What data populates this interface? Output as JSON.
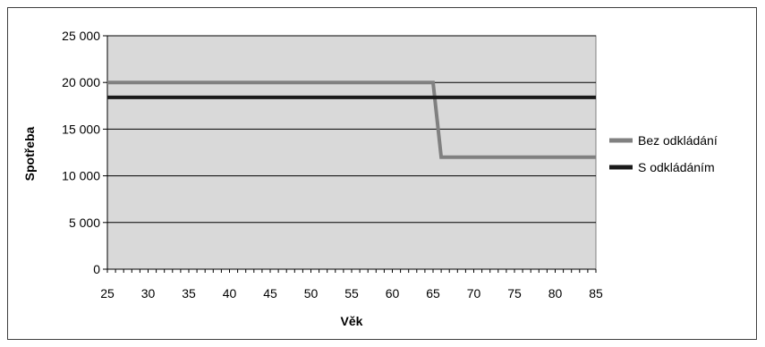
{
  "chart_data": {
    "type": "line",
    "xlabel": "Věk",
    "ylabel": "Spotřeba",
    "xlim": [
      25,
      85
    ],
    "ylim": [
      0,
      25000
    ],
    "x_ticks": [
      25,
      30,
      35,
      40,
      45,
      50,
      55,
      60,
      65,
      70,
      75,
      80,
      85
    ],
    "x_tick_labels": [
      "25",
      "30",
      "35",
      "40",
      "45",
      "50",
      "55",
      "60",
      "65",
      "70",
      "75",
      "80",
      "85"
    ],
    "y_ticks": [
      0,
      5000,
      10000,
      15000,
      20000,
      25000
    ],
    "y_tick_labels": [
      "0",
      "5 000",
      "10 000",
      "15 000",
      "20 000",
      "25 000"
    ],
    "grid": "horizontal",
    "legend_position": "right",
    "series": [
      {
        "name": "Bez odkládání",
        "color": "#808080",
        "x": [
          25,
          65,
          66,
          85
        ],
        "y": [
          20000,
          20000,
          12000,
          12000
        ]
      },
      {
        "name": "S odkládáním",
        "color": "#1a1a1a",
        "x": [
          25,
          85
        ],
        "y": [
          18400,
          18400
        ]
      }
    ]
  }
}
